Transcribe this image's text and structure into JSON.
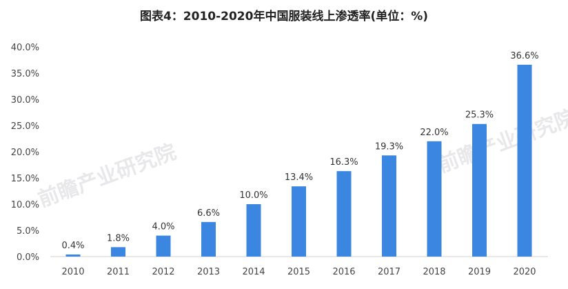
{
  "watermark": "前瞻产业研究院",
  "chart_data": {
    "type": "bar",
    "title": "图表4：2010-2020年中国服装线上渗透率(单位：%)",
    "xlabel": "",
    "ylabel": "",
    "categories": [
      "2010",
      "2011",
      "2012",
      "2013",
      "2014",
      "2015",
      "2016",
      "2017",
      "2018",
      "2019",
      "2020"
    ],
    "values": [
      0.4,
      1.8,
      4.0,
      6.6,
      10.0,
      13.4,
      16.3,
      19.3,
      22.0,
      25.3,
      36.6
    ],
    "data_labels": [
      "0.4%",
      "1.8%",
      "4.0%",
      "6.6%",
      "10.0%",
      "13.4%",
      "16.3%",
      "19.3%",
      "22.0%",
      "25.3%",
      "36.6%"
    ],
    "ylim": [
      0,
      40
    ],
    "yticks": [
      "0.0%",
      "5.0%",
      "10.0%",
      "15.0%",
      "20.0%",
      "25.0%",
      "30.0%",
      "35.0%",
      "40.0%"
    ],
    "grid": false,
    "bar_color": "#3b86e0"
  }
}
